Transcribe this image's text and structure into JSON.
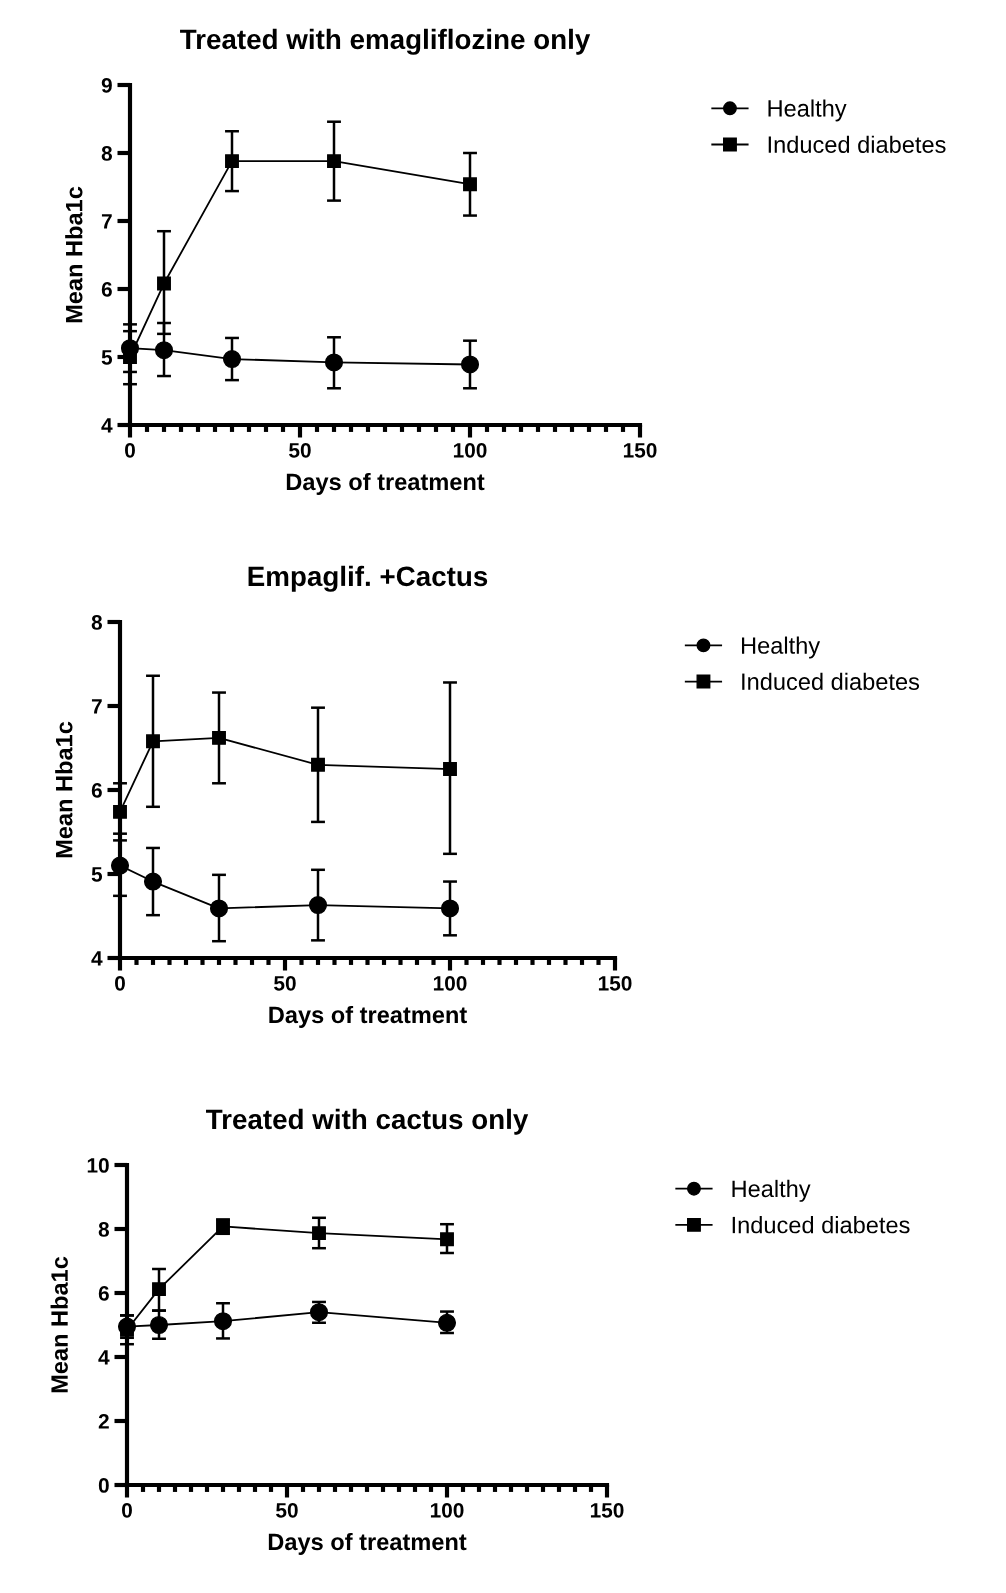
{
  "chart_data": [
    {
      "type": "line",
      "title": "Treated with emagliflozine only",
      "xlabel": "Days of treatment",
      "ylabel": "Mean Hba1c",
      "x": [
        0,
        10,
        30,
        60,
        100
      ],
      "xlim": [
        0,
        150
      ],
      "ylim": [
        4,
        9
      ],
      "yticks": [
        4,
        5,
        6,
        7,
        8,
        9
      ],
      "xticks": [
        0,
        {
          "value": 5,
          "label": null
        },
        {
          "value": 10,
          "label": null
        },
        {
          "value": 15,
          "label": null
        },
        {
          "value": 20,
          "label": null
        },
        {
          "value": 25,
          "label": null
        },
        {
          "value": 30,
          "label": null
        },
        {
          "value": 35,
          "label": null
        },
        {
          "value": 40,
          "label": null
        },
        {
          "value": 45,
          "label": null
        },
        50,
        {
          "value": 55,
          "label": null
        },
        {
          "value": 60,
          "label": null
        },
        {
          "value": 65,
          "label": null
        },
        {
          "value": 70,
          "label": null
        },
        {
          "value": 75,
          "label": null
        },
        {
          "value": 80,
          "label": null
        },
        {
          "value": 85,
          "label": null
        },
        {
          "value": 90,
          "label": null
        },
        {
          "value": 95,
          "label": null
        },
        100,
        {
          "value": 105,
          "label": null
        },
        {
          "value": 110,
          "label": null
        },
        {
          "value": 115,
          "label": null
        },
        {
          "value": 120,
          "label": null
        },
        {
          "value": 125,
          "label": null
        },
        {
          "value": 130,
          "label": null
        },
        {
          "value": 135,
          "label": null
        },
        {
          "value": 140,
          "label": null
        },
        {
          "value": 145,
          "label": null
        },
        150
      ],
      "grid": false,
      "legend": "top right",
      "line_style": "solid",
      "series": [
        {
          "name": "Healthy",
          "color": "#000000",
          "marker": "circle",
          "values": [
            5.13,
            5.1,
            4.97,
            4.92,
            4.89
          ],
          "errors": [
            [
              4.78,
              5.48
            ],
            [
              4.72,
              5.5
            ],
            [
              4.66,
              5.28
            ],
            [
              4.54,
              5.29
            ],
            [
              4.54,
              5.24
            ]
          ]
        },
        {
          "name": "Induced diabetes",
          "color": "#000000",
          "marker": "square",
          "values": [
            5.0,
            6.08,
            7.88,
            7.88,
            7.54
          ],
          "errors": [
            [
              4.6,
              5.38
            ],
            [
              5.34,
              6.85
            ],
            [
              7.44,
              8.32
            ],
            [
              7.3,
              8.46
            ],
            [
              7.08,
              8.0
            ]
          ]
        }
      ]
    },
    {
      "type": "line",
      "title": "Empaglif. +Cactus",
      "xlabel": "Days of treatment",
      "ylabel": "Mean Hba1c",
      "x": [
        0,
        10,
        30,
        60,
        100
      ],
      "xlim": [
        0,
        150
      ],
      "ylim": [
        4,
        8
      ],
      "yticks": [
        4,
        5,
        6,
        7,
        8
      ],
      "xticks": [
        0,
        {
          "value": 5,
          "label": null
        },
        {
          "value": 10,
          "label": null
        },
        {
          "value": 15,
          "label": null
        },
        {
          "value": 20,
          "label": null
        },
        {
          "value": 25,
          "label": null
        },
        {
          "value": 30,
          "label": null
        },
        {
          "value": 35,
          "label": null
        },
        {
          "value": 40,
          "label": null
        },
        {
          "value": 45,
          "label": null
        },
        50,
        {
          "value": 55,
          "label": null
        },
        {
          "value": 60,
          "label": null
        },
        {
          "value": 65,
          "label": null
        },
        {
          "value": 70,
          "label": null
        },
        {
          "value": 75,
          "label": null
        },
        {
          "value": 80,
          "label": null
        },
        {
          "value": 85,
          "label": null
        },
        {
          "value": 90,
          "label": null
        },
        {
          "value": 95,
          "label": null
        },
        100,
        {
          "value": 105,
          "label": null
        },
        {
          "value": 110,
          "label": null
        },
        {
          "value": 115,
          "label": null
        },
        {
          "value": 120,
          "label": null
        },
        {
          "value": 125,
          "label": null
        },
        {
          "value": 130,
          "label": null
        },
        {
          "value": 135,
          "label": null
        },
        {
          "value": 140,
          "label": null
        },
        {
          "value": 145,
          "label": null
        },
        150
      ],
      "grid": false,
      "legend": "top right",
      "line_style": "solid",
      "series": [
        {
          "name": "Healthy",
          "color": "#000000",
          "marker": "circle",
          "values": [
            5.1,
            4.91,
            4.59,
            4.63,
            4.59
          ],
          "errors": [
            [
              4.74,
              5.48
            ],
            [
              4.51,
              5.31
            ],
            [
              4.2,
              4.99
            ],
            [
              4.21,
              5.05
            ],
            [
              4.27,
              4.91
            ]
          ]
        },
        {
          "name": "Induced diabetes",
          "color": "#000000",
          "marker": "square",
          "values": [
            5.74,
            6.58,
            6.62,
            6.3,
            6.25
          ],
          "errors": [
            [
              5.4,
              6.08
            ],
            [
              5.8,
              7.36
            ],
            [
              6.08,
              7.16
            ],
            [
              5.62,
              6.98
            ],
            [
              5.24,
              7.28
            ]
          ]
        }
      ]
    },
    {
      "type": "line",
      "title": "Treated with cactus only",
      "xlabel": "Days of treatment",
      "ylabel": "Mean Hba1c",
      "x": [
        0,
        10,
        30,
        60,
        100
      ],
      "xlim": [
        0,
        150
      ],
      "ylim": [
        0,
        10
      ],
      "yticks": [
        0,
        2,
        4,
        6,
        8,
        10
      ],
      "xticks": [
        0,
        {
          "value": 5,
          "label": null
        },
        {
          "value": 10,
          "label": null
        },
        {
          "value": 15,
          "label": null
        },
        {
          "value": 20,
          "label": null
        },
        {
          "value": 25,
          "label": null
        },
        {
          "value": 30,
          "label": null
        },
        {
          "value": 35,
          "label": null
        },
        {
          "value": 40,
          "label": null
        },
        {
          "value": 45,
          "label": null
        },
        50,
        {
          "value": 55,
          "label": null
        },
        {
          "value": 60,
          "label": null
        },
        {
          "value": 65,
          "label": null
        },
        {
          "value": 70,
          "label": null
        },
        {
          "value": 75,
          "label": null
        },
        {
          "value": 80,
          "label": null
        },
        {
          "value": 85,
          "label": null
        },
        {
          "value": 90,
          "label": null
        },
        {
          "value": 95,
          "label": null
        },
        100,
        {
          "value": 105,
          "label": null
        },
        {
          "value": 110,
          "label": null
        },
        {
          "value": 115,
          "label": null
        },
        {
          "value": 120,
          "label": null
        },
        {
          "value": 125,
          "label": null
        },
        {
          "value": 130,
          "label": null
        },
        {
          "value": 135,
          "label": null
        },
        {
          "value": 140,
          "label": null
        },
        {
          "value": 145,
          "label": null
        },
        150
      ],
      "grid": false,
      "legend": "top right",
      "line_style": "solid",
      "series": [
        {
          "name": "Healthy",
          "color": "#000000",
          "marker": "circle",
          "values": [
            4.95,
            5.0,
            5.12,
            5.4,
            5.07
          ],
          "errors": [
            [
              4.6,
              5.3
            ],
            [
              4.57,
              5.45
            ],
            [
              4.58,
              5.68
            ],
            [
              5.07,
              5.72
            ],
            [
              4.75,
              5.42
            ]
          ]
        },
        {
          "name": "Induced diabetes",
          "color": "#000000",
          "marker": "square",
          "values": [
            4.85,
            6.12,
            8.08,
            7.87,
            7.68
          ],
          "errors": [
            [
              4.4,
              5.3
            ],
            [
              5.45,
              6.75
            ],
            [
              7.85,
              8.3
            ],
            [
              7.4,
              8.35
            ],
            [
              7.25,
              8.15
            ]
          ]
        }
      ]
    }
  ]
}
